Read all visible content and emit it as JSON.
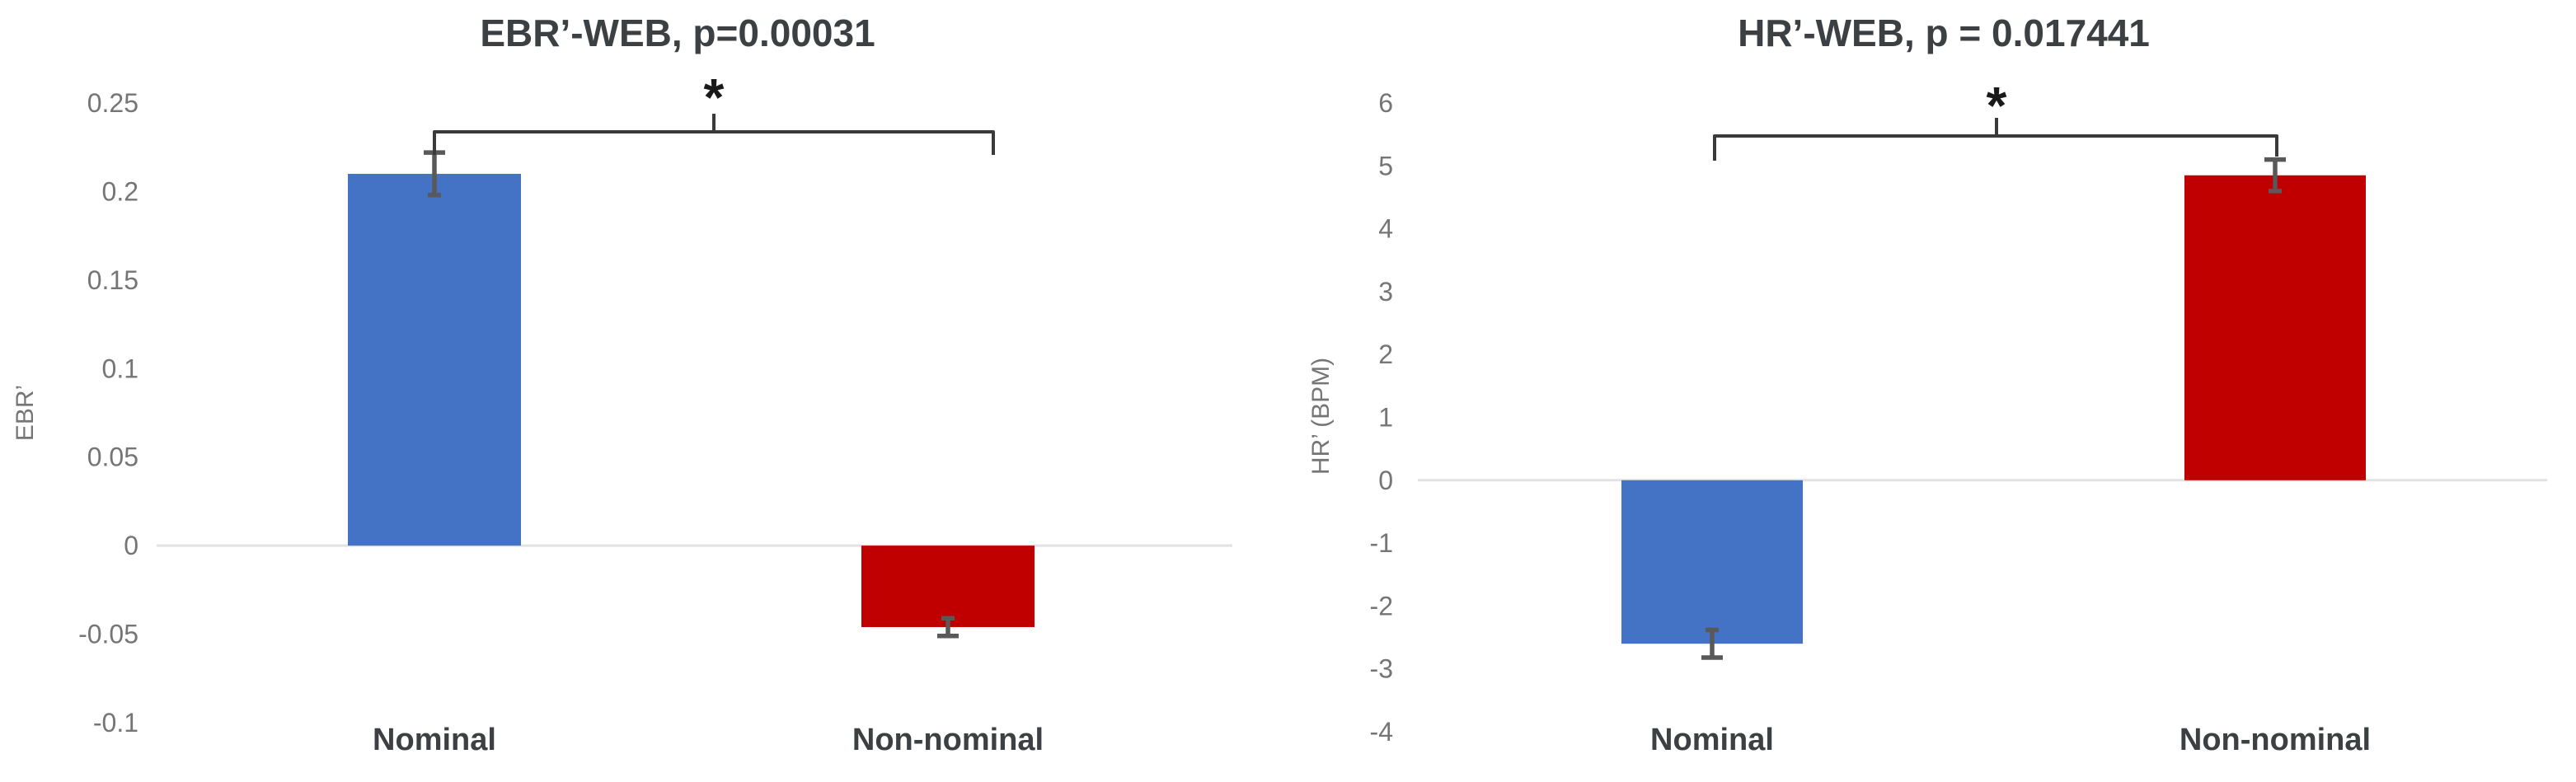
{
  "figure": {
    "background": "#ffffff",
    "zero_line_color": "#e2e2e2"
  },
  "chart_data": [
    {
      "type": "bar",
      "title": "EBR’-WEB, p=0.00031",
      "xlabel": "",
      "ylabel": "EBR’",
      "categories": [
        "Nominal",
        "Non-nominal"
      ],
      "values": [
        0.21,
        -0.046
      ],
      "errors": [
        0.012,
        0.005
      ],
      "bar_colors": [
        "#4472C4",
        "#C00000"
      ],
      "error_color": "#595959",
      "ylim": [
        -0.1,
        0.25
      ],
      "yticks": [
        "0.25",
        "0.2",
        "0.15",
        "0.1",
        "0.05",
        "0",
        "-0.05",
        "-0.1"
      ],
      "grid": false,
      "zero_line": true,
      "legend": "none",
      "significance": {
        "symbol": "*",
        "between": [
          "Nominal",
          "Non-nominal"
        ]
      }
    },
    {
      "type": "bar",
      "title": "HR’-WEB, p = 0.017441",
      "xlabel": "",
      "ylabel": "HR’ (BPM)",
      "categories": [
        "Nominal",
        "Non-nominal"
      ],
      "values": [
        -2.6,
        4.85
      ],
      "errors": [
        0.22,
        0.25
      ],
      "bar_colors": [
        "#4472C4",
        "#C00000"
      ],
      "error_color": "#595959",
      "ylim": [
        -4,
        6
      ],
      "yticks": [
        "6",
        "5",
        "4",
        "3",
        "2",
        "1",
        "0",
        "-1",
        "-2",
        "-3",
        "-4"
      ],
      "grid": false,
      "zero_line": true,
      "legend": "none",
      "significance": {
        "symbol": "*",
        "between": [
          "Nominal",
          "Non-nominal"
        ]
      }
    }
  ]
}
